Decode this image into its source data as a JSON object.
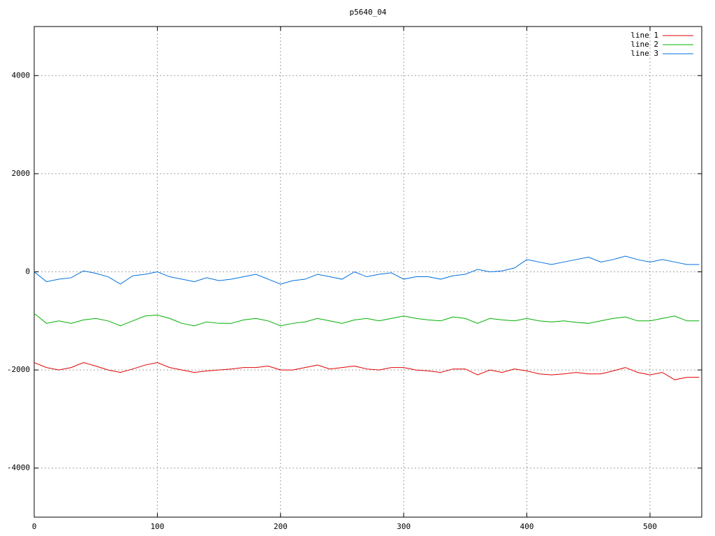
{
  "chart_data": {
    "type": "line",
    "title": "p5640_04",
    "x": [
      0,
      10,
      20,
      30,
      40,
      50,
      60,
      70,
      80,
      90,
      100,
      110,
      120,
      130,
      140,
      150,
      160,
      170,
      180,
      190,
      200,
      210,
      220,
      230,
      240,
      250,
      260,
      270,
      280,
      290,
      300,
      310,
      320,
      330,
      340,
      350,
      360,
      370,
      380,
      390,
      400,
      410,
      420,
      430,
      440,
      450,
      460,
      470,
      480,
      490,
      500,
      510,
      520,
      530,
      540
    ],
    "series": [
      {
        "name": "line 1",
        "color": "#e00000",
        "values": [
          -1850,
          -1950,
          -2000,
          -1950,
          -1850,
          -1920,
          -2000,
          -2050,
          -1980,
          -1900,
          -1850,
          -1950,
          -2000,
          -2050,
          -2020,
          -2000,
          -1980,
          -1950,
          -1950,
          -1920,
          -2000,
          -2000,
          -1950,
          -1900,
          -1980,
          -1950,
          -1920,
          -1980,
          -2000,
          -1950,
          -1950,
          -2000,
          -2020,
          -2050,
          -1980,
          -1980,
          -2100,
          -2000,
          -2050,
          -1980,
          -2020,
          -2080,
          -2100,
          -2080,
          -2050,
          -2080,
          -2080,
          -2020,
          -1950,
          -2050,
          -2100,
          -2050,
          -2200,
          -2150,
          -2150
        ]
      },
      {
        "name": "line 2",
        "color": "#00b000",
        "values": [
          -850,
          -1050,
          -1000,
          -1050,
          -980,
          -950,
          -1000,
          -1100,
          -1000,
          -900,
          -880,
          -950,
          -1050,
          -1100,
          -1020,
          -1050,
          -1050,
          -980,
          -950,
          -1000,
          -1100,
          -1050,
          -1020,
          -950,
          -1000,
          -1050,
          -980,
          -950,
          -1000,
          -950,
          -900,
          -950,
          -980,
          -1000,
          -920,
          -950,
          -1050,
          -950,
          -980,
          -1000,
          -950,
          -1000,
          -1020,
          -1000,
          -1030,
          -1050,
          -1000,
          -950,
          -920,
          -1000,
          -1000,
          -950,
          -900,
          -1000,
          -1000
        ]
      },
      {
        "name": "line 3",
        "color": "#0070e0",
        "values": [
          0,
          -200,
          -150,
          -120,
          20,
          -30,
          -100,
          -250,
          -80,
          -50,
          0,
          -100,
          -150,
          -200,
          -120,
          -180,
          -150,
          -100,
          -50,
          -150,
          -250,
          -180,
          -150,
          -50,
          -100,
          -150,
          0,
          -100,
          -50,
          -20,
          -150,
          -100,
          -100,
          -150,
          -80,
          -50,
          50,
          0,
          20,
          80,
          250,
          200,
          150,
          200,
          250,
          300,
          200,
          250,
          320,
          250,
          200,
          250,
          200,
          150,
          150
        ]
      }
    ],
    "xlim": [
      0,
      542
    ],
    "xticks": [
      0,
      100,
      200,
      300,
      400,
      500
    ],
    "ylim": [
      -5000,
      5000
    ],
    "yticks": [
      -4000,
      -2000,
      0,
      2000,
      4000
    ],
    "grid": true,
    "legend": "top-right"
  }
}
